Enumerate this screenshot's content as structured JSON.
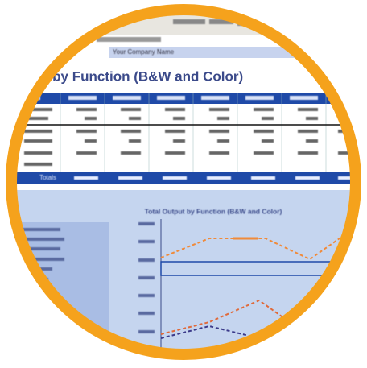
{
  "header": {
    "company_name": "Your Company Name"
  },
  "report": {
    "title": "put by Function (B&W and Color)",
    "totals_label": "Totals",
    "chart_title": "Total Output by Function (B&W and Color)"
  }
}
